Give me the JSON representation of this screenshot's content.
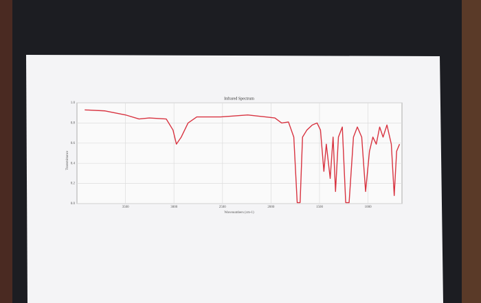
{
  "chart_data": {
    "type": "line",
    "title": "Infrared Spectrum",
    "x_label": "Wavenumbers (cm-1)",
    "y_label": "Transmittance",
    "x": [
      3920,
      3710,
      3500,
      3360,
      3255,
      3080,
      3010,
      2975,
      2925,
      2855,
      2765,
      2520,
      2240,
      1960,
      1890,
      1820,
      1765,
      1730,
      1700,
      1675,
      1630,
      1575,
      1525,
      1490,
      1455,
      1430,
      1390,
      1360,
      1335,
      1305,
      1265,
      1230,
      1195,
      1150,
      1110,
      1065,
      1025,
      985,
      950,
      915,
      880,
      845,
      805,
      760,
      730,
      705,
      675
    ],
    "values": [
      0.93,
      0.92,
      0.88,
      0.84,
      0.85,
      0.84,
      0.73,
      0.59,
      0.66,
      0.8,
      0.86,
      0.86,
      0.88,
      0.85,
      0.8,
      0.81,
      0.66,
      0.01,
      0.01,
      0.66,
      0.73,
      0.78,
      0.8,
      0.73,
      0.32,
      0.59,
      0.25,
      0.66,
      0.12,
      0.66,
      0.76,
      0.01,
      0.01,
      0.66,
      0.76,
      0.66,
      0.12,
      0.52,
      0.66,
      0.59,
      0.76,
      0.66,
      0.78,
      0.59,
      0.08,
      0.52,
      0.59
    ],
    "color": "#d8323f",
    "xlim": [
      4000,
      650
    ],
    "xticks": [
      3500,
      3000,
      2500,
      2000,
      1500,
      1000
    ],
    "ylim": [
      0,
      1
    ],
    "yticks": [
      {
        "value": 0,
        "label": "0.0"
      },
      0.2,
      0.4,
      0.6,
      0.8,
      {
        "value": 1,
        "label": "1.0"
      }
    ],
    "grid": true
  }
}
